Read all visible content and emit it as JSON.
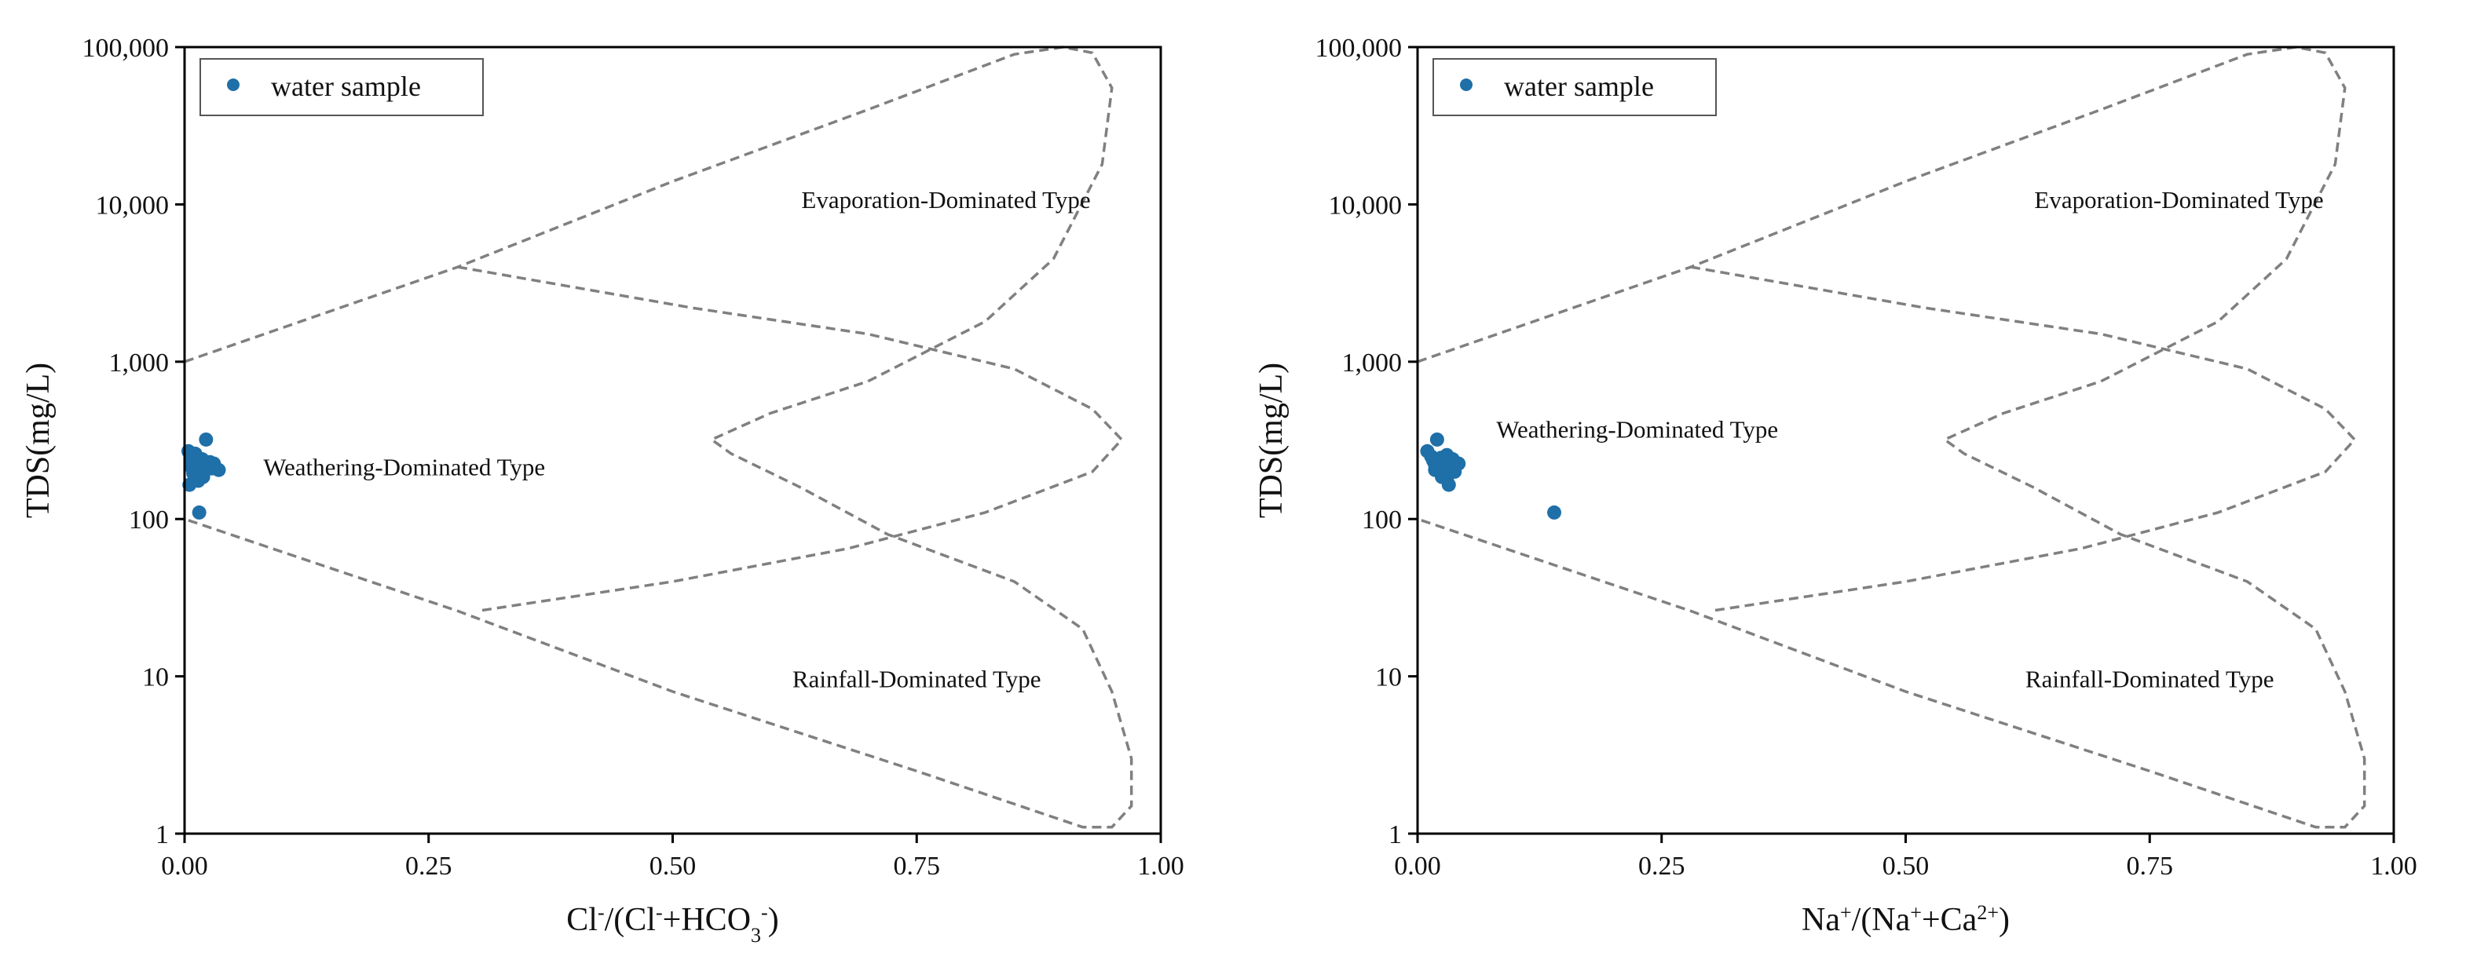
{
  "colors": {
    "point": "#1f6fa8",
    "boundary": "#808080",
    "axis": "#000000"
  },
  "chart_data": [
    {
      "type": "scatter",
      "x_axis": {
        "label_main": "Cl",
        "label_sup1": "-",
        "label_mid": "/(Cl",
        "label_sup2": "-",
        "label_plus": "+HCO",
        "label_sub": "3",
        "label_sup3": "-",
        "label_end": ")",
        "range": [
          0,
          1
        ],
        "ticks": [
          "0.00",
          "0.25",
          "0.50",
          "0.75",
          "1.00"
        ],
        "tick_values": [
          0,
          0.25,
          0.5,
          0.75,
          1.0
        ]
      },
      "y_axis": {
        "label": "TDS(mg/L)",
        "scale": "log",
        "range": [
          1,
          100000
        ],
        "ticks": [
          "1",
          "10",
          "100",
          "1,000",
          "10,000",
          "100,000"
        ],
        "tick_values": [
          1,
          10,
          100,
          1000,
          10000,
          100000
        ]
      },
      "legend": {
        "label": "water sample",
        "position": "top-left"
      },
      "series": [
        {
          "name": "water sample",
          "points": [
            [
              0.004,
              270
            ],
            [
              0.006,
              230
            ],
            [
              0.008,
              210
            ],
            [
              0.01,
              250
            ],
            [
              0.012,
              190
            ],
            [
              0.014,
              175
            ],
            [
              0.016,
              220
            ],
            [
              0.018,
              240
            ],
            [
              0.02,
              200
            ],
            [
              0.022,
              320
            ],
            [
              0.024,
              215
            ],
            [
              0.026,
              230
            ],
            [
              0.028,
              210
            ],
            [
              0.03,
              225
            ],
            [
              0.035,
              205
            ],
            [
              0.005,
              165
            ],
            [
              0.015,
              110
            ],
            [
              0.011,
              260
            ],
            [
              0.019,
              185
            ],
            [
              0.009,
              195
            ]
          ]
        }
      ],
      "annotations": [
        {
          "text": "Evaporation-Dominated Type",
          "x": 0.78,
          "y": 9500
        },
        {
          "text": "Weathering-Dominated Type",
          "x": 0.225,
          "y": 190
        },
        {
          "text": "Rainfall-Dominated Type",
          "x": 0.75,
          "y": 8.5
        }
      ]
    },
    {
      "type": "scatter",
      "x_axis": {
        "label_main": "Na",
        "label_sup1": "+",
        "label_mid": "/(Na",
        "label_sup2": "+",
        "label_plus": "+Ca",
        "label_sub": "",
        "label_sup3": "2+",
        "label_end": ")",
        "range": [
          0,
          1
        ],
        "ticks": [
          "0.00",
          "0.25",
          "0.50",
          "0.75",
          "1.00"
        ],
        "tick_values": [
          0,
          0.25,
          0.5,
          0.75,
          1.0
        ]
      },
      "y_axis": {
        "label": "TDS(mg/L)",
        "scale": "log",
        "range": [
          1,
          100000
        ],
        "ticks": [
          "1",
          "10",
          "100",
          "1,000",
          "10,000",
          "100,000"
        ],
        "tick_values": [
          1,
          10,
          100,
          1000,
          10000,
          100000
        ]
      },
      "legend": {
        "label": "water sample",
        "position": "top-left"
      },
      "series": [
        {
          "name": "water sample",
          "points": [
            [
              0.01,
              270
            ],
            [
              0.014,
              250
            ],
            [
              0.016,
              235
            ],
            [
              0.018,
              220
            ],
            [
              0.02,
              320
            ],
            [
              0.022,
              210
            ],
            [
              0.024,
              245
            ],
            [
              0.026,
              195
            ],
            [
              0.028,
              230
            ],
            [
              0.03,
              180
            ],
            [
              0.032,
              165
            ],
            [
              0.034,
              210
            ],
            [
              0.036,
              240
            ],
            [
              0.038,
              200
            ],
            [
              0.042,
              225
            ],
            [
              0.025,
              185
            ],
            [
              0.14,
              110
            ],
            [
              0.03,
              255
            ],
            [
              0.018,
              205
            ],
            [
              0.028,
              215
            ]
          ]
        }
      ],
      "annotations": [
        {
          "text": "Evaporation-Dominated Type",
          "x": 0.78,
          "y": 9500
        },
        {
          "text": "Weathering-Dominated Type",
          "x": 0.225,
          "y": 330
        },
        {
          "text": "Rainfall-Dominated Type",
          "x": 0.75,
          "y": 8.5
        }
      ]
    }
  ]
}
